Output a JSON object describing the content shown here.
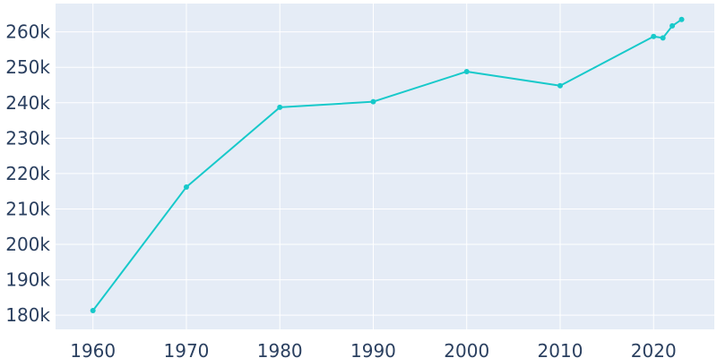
{
  "chart_data": {
    "type": "line",
    "title": "",
    "xlabel": "",
    "ylabel": "",
    "grid": true,
    "xlim": [
      1956,
      2026.5
    ],
    "ylim": [
      176000,
      268000
    ],
    "x_ticks": [
      {
        "value": 1960,
        "label": "1960"
      },
      {
        "value": 1970,
        "label": "1970"
      },
      {
        "value": 1980,
        "label": "1980"
      },
      {
        "value": 1990,
        "label": "1990"
      },
      {
        "value": 2000,
        "label": "2000"
      },
      {
        "value": 2010,
        "label": "2010"
      },
      {
        "value": 2020,
        "label": "2020"
      }
    ],
    "y_ticks": [
      {
        "value": 180000,
        "label": "180k"
      },
      {
        "value": 190000,
        "label": "190k"
      },
      {
        "value": 200000,
        "label": "200k"
      },
      {
        "value": 210000,
        "label": "210k"
      },
      {
        "value": 220000,
        "label": "220k"
      },
      {
        "value": 230000,
        "label": "230k"
      },
      {
        "value": 240000,
        "label": "240k"
      },
      {
        "value": 250000,
        "label": "250k"
      },
      {
        "value": 260000,
        "label": "260k"
      }
    ],
    "series": [
      {
        "color": "#17c9ca",
        "x": [
          1960,
          1970,
          1980,
          1990,
          2000,
          2010,
          2020,
          2021,
          2022,
          2023
        ],
        "y": [
          181300,
          216200,
          238700,
          240300,
          248800,
          244800,
          258700,
          258300,
          261700,
          263500
        ]
      }
    ]
  },
  "colors": {
    "plot_background": "#e5ecf6",
    "grid": "#ffffff",
    "tick_text": "#2a3f5f"
  }
}
